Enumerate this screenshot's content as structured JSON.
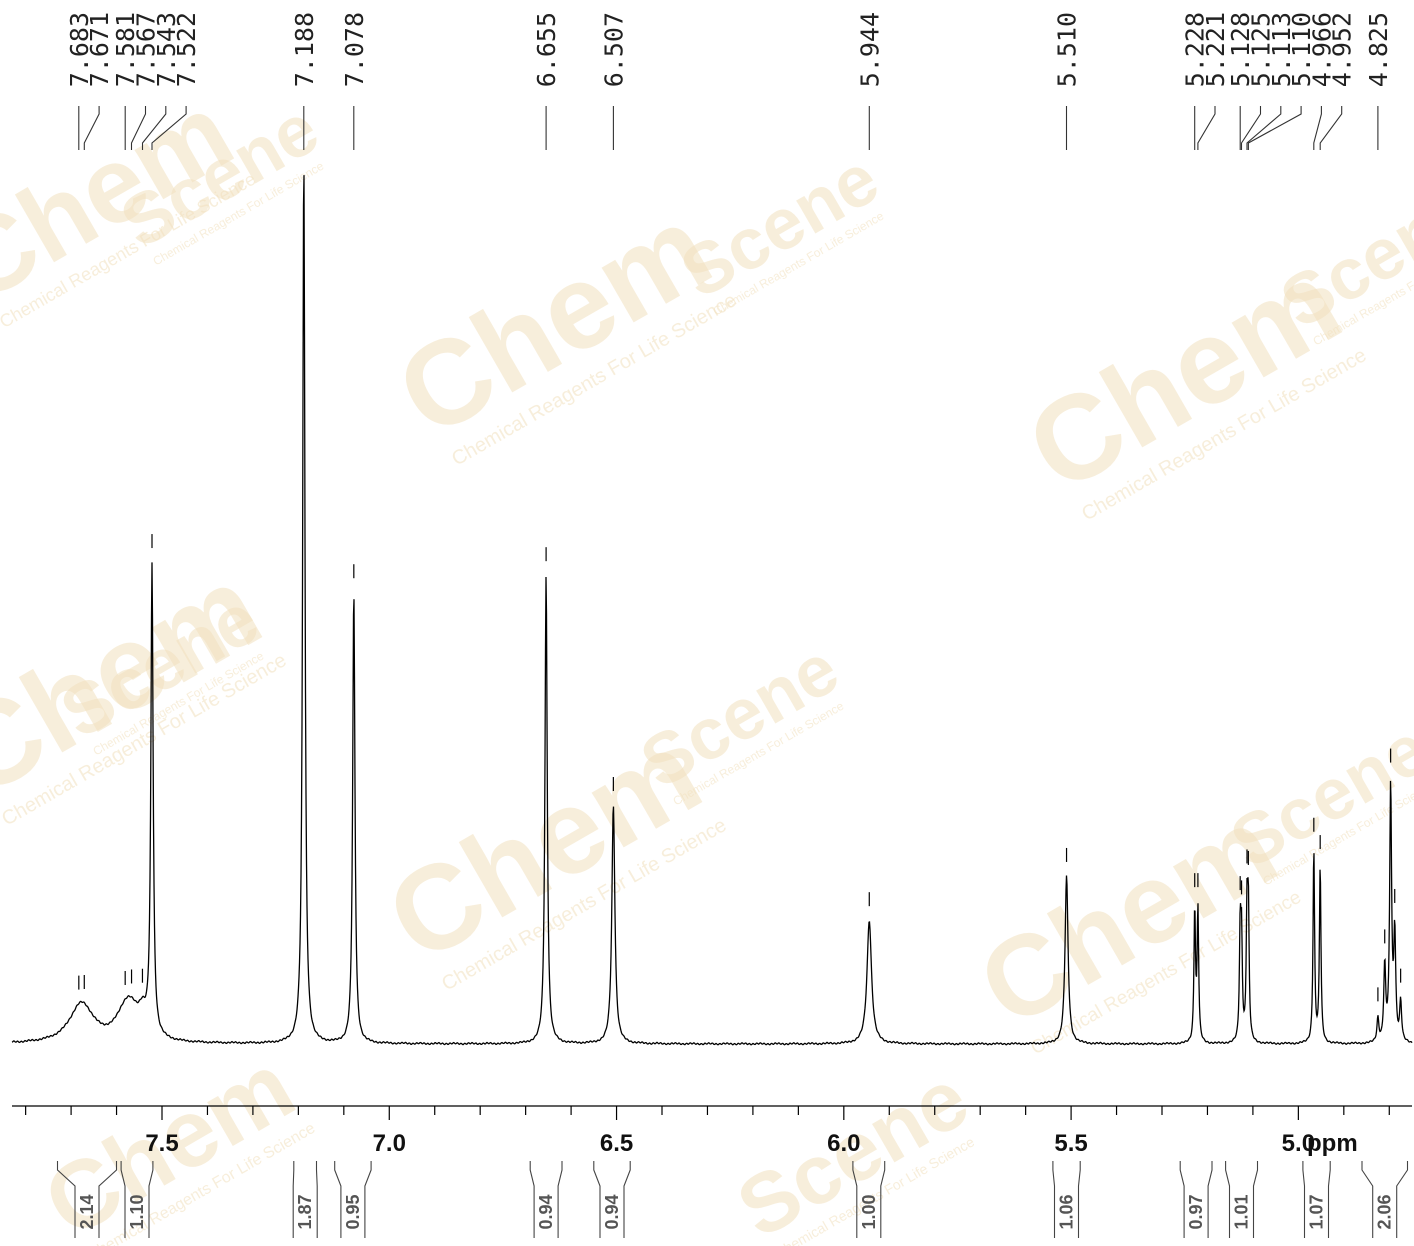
{
  "chart_data": {
    "type": "line",
    "title": "",
    "xlabel": "ppm",
    "ylabel": "",
    "x_range": [
      7.83,
      4.75
    ],
    "grid": false,
    "x_major_ticks": [
      {
        "value": 7.5,
        "label": "7.5"
      },
      {
        "value": 7.0,
        "label": "7.0"
      },
      {
        "value": 6.5,
        "label": "6.5"
      },
      {
        "value": 6.0,
        "label": "6.0"
      },
      {
        "value": 5.5,
        "label": "5.5"
      },
      {
        "value": 5.0,
        "label": "5.0"
      }
    ],
    "x_minor_step": 0.1,
    "peaks": [
      {
        "ppm": 7.683,
        "label": "7.683",
        "height": 0.023,
        "width": 0.03,
        "marked": true
      },
      {
        "ppm": 7.671,
        "label": "7.671",
        "height": 0.023,
        "width": 0.03,
        "marked": true
      },
      {
        "ppm": 7.581,
        "label": "7.581",
        "height": 0.025,
        "width": 0.025,
        "marked": true
      },
      {
        "ppm": 7.567,
        "label": "7.567",
        "height": 0.025,
        "width": 0.025,
        "marked": true
      },
      {
        "ppm": 7.543,
        "label": "7.543",
        "height": 0.02,
        "width": 0.01,
        "marked": true
      },
      {
        "ppm": 7.522,
        "label": "7.522",
        "height": 0.53,
        "width": 0.003,
        "marked": true
      },
      {
        "ppm": 7.188,
        "label": "7.188",
        "height": 1.0,
        "width": 0.003,
        "marked": false
      },
      {
        "ppm": 7.078,
        "label": "7.078",
        "height": 0.51,
        "width": 0.003,
        "marked": true
      },
      {
        "ppm": 6.655,
        "label": "6.655",
        "height": 0.53,
        "width": 0.003,
        "marked": true
      },
      {
        "ppm": 6.507,
        "label": "6.507",
        "height": 0.27,
        "width": 0.004,
        "marked": true
      },
      {
        "ppm": 5.944,
        "label": "5.944",
        "height": 0.14,
        "width": 0.006,
        "marked": true
      },
      {
        "ppm": 5.51,
        "label": "5.510",
        "height": 0.19,
        "width": 0.004,
        "marked": true
      },
      {
        "ppm": 5.228,
        "label": "5.228",
        "height": 0.15,
        "width": 0.002,
        "marked": true
      },
      {
        "ppm": 5.221,
        "label": "5.221",
        "height": 0.15,
        "width": 0.002,
        "marked": true
      },
      {
        "ppm": 5.128,
        "label": "5.128",
        "height": 0.12,
        "width": 0.002,
        "marked": true
      },
      {
        "ppm": 5.125,
        "label": "5.125",
        "height": 0.11,
        "width": 0.002,
        "marked": true
      },
      {
        "ppm": 5.113,
        "label": "5.113",
        "height": 0.14,
        "width": 0.002,
        "marked": true
      },
      {
        "ppm": 5.11,
        "label": "5.110",
        "height": 0.14,
        "width": 0.002,
        "marked": true
      },
      {
        "ppm": 4.966,
        "label": "4.966",
        "height": 0.22,
        "width": 0.002,
        "marked": true
      },
      {
        "ppm": 4.952,
        "label": "4.952",
        "height": 0.2,
        "width": 0.002,
        "marked": true
      },
      {
        "ppm": 4.825,
        "label": "4.825",
        "height": 0.027,
        "width": 0.0025,
        "marked": true
      },
      {
        "ppm": 4.81,
        "label": "",
        "height": 0.085,
        "width": 0.0025,
        "marked": true
      },
      {
        "ppm": 4.797,
        "label": "",
        "height": 0.29,
        "width": 0.0025,
        "marked": true
      },
      {
        "ppm": 4.788,
        "label": "",
        "height": 0.12,
        "width": 0.0025,
        "marked": true
      },
      {
        "ppm": 4.775,
        "label": "",
        "height": 0.045,
        "width": 0.0025,
        "marked": true
      }
    ],
    "integrals": [
      {
        "label": "2.14",
        "from": 7.73,
        "to": 7.6
      },
      {
        "label": "1.10",
        "from": 7.59,
        "to": 7.52
      },
      {
        "label": "1.87",
        "from": 7.21,
        "to": 7.16
      },
      {
        "label": "0.95",
        "from": 7.12,
        "to": 7.04
      },
      {
        "label": "0.94",
        "from": 6.69,
        "to": 6.62
      },
      {
        "label": "0.94",
        "from": 6.55,
        "to": 6.47
      },
      {
        "label": "1.00",
        "from": 5.98,
        "to": 5.91
      },
      {
        "label": "1.06",
        "from": 5.54,
        "to": 5.48
      },
      {
        "label": "0.97",
        "from": 5.26,
        "to": 5.19
      },
      {
        "label": "1.01",
        "from": 5.16,
        "to": 5.09
      },
      {
        "label": "1.07",
        "from": 4.99,
        "to": 4.93
      },
      {
        "label": "2.06",
        "from": 4.86,
        "to": 4.76
      }
    ]
  },
  "watermark": {
    "brand": "Chem",
    "product": "Scene",
    "tagline": "Chemical Reagents For Life Science",
    "color": "#f2e1bf"
  },
  "colors": {
    "spectrum": "#000000",
    "label_lines": "#333333",
    "integral_text": "#555555"
  }
}
